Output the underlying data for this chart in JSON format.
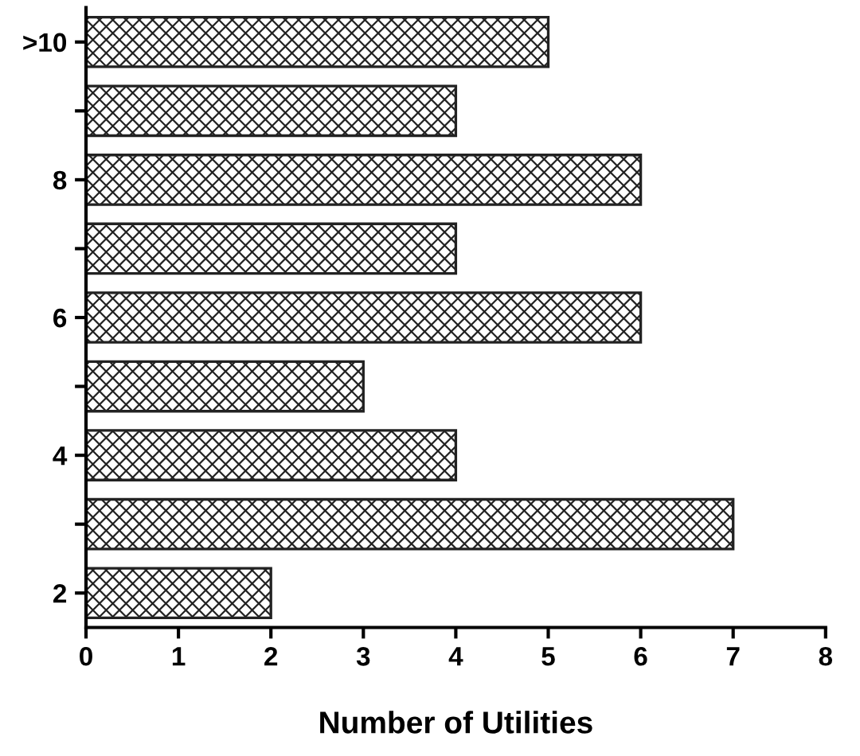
{
  "chart_data": {
    "type": "bar",
    "orientation": "horizontal",
    "xlabel": "Number of Utilities",
    "categories": [
      ">10",
      null,
      "8",
      null,
      "6",
      null,
      "4",
      null,
      "2"
    ],
    "values": [
      5,
      4,
      6,
      4,
      6,
      3,
      4,
      7,
      2
    ],
    "color": "#222222",
    "xlim": [
      0,
      8
    ],
    "xticks": [
      0,
      1,
      2,
      3,
      4,
      5,
      6,
      7,
      8
    ],
    "grid": false
  }
}
